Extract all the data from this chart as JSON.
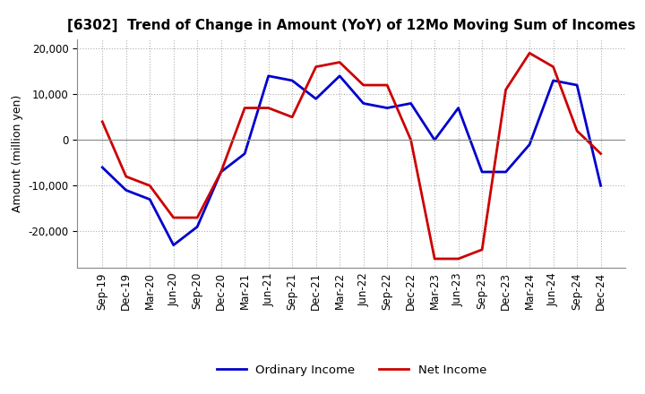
{
  "title": "[6302]  Trend of Change in Amount (YoY) of 12Mo Moving Sum of Incomes",
  "ylabel": "Amount (million yen)",
  "ylim": [
    -28000,
    22000
  ],
  "yticks": [
    -20000,
    -10000,
    0,
    10000,
    20000
  ],
  "legend_labels": [
    "Ordinary Income",
    "Net Income"
  ],
  "line_colors": [
    "#0000cc",
    "#cc0000"
  ],
  "x_labels": [
    "Sep-19",
    "Dec-19",
    "Mar-20",
    "Jun-20",
    "Sep-20",
    "Dec-20",
    "Mar-21",
    "Jun-21",
    "Sep-21",
    "Dec-21",
    "Mar-22",
    "Jun-22",
    "Sep-22",
    "Dec-22",
    "Mar-23",
    "Jun-23",
    "Sep-23",
    "Dec-23",
    "Mar-24",
    "Jun-24",
    "Sep-24",
    "Dec-24"
  ],
  "ordinary_income": [
    -6000,
    -11000,
    -13000,
    -23000,
    -19000,
    -7000,
    -3000,
    14000,
    13000,
    9000,
    14000,
    8000,
    7000,
    8000,
    0,
    7000,
    -7000,
    -7000,
    -1000,
    13000,
    12000,
    -10000
  ],
  "net_income": [
    4000,
    -8000,
    -10000,
    -17000,
    -17000,
    -7000,
    7000,
    7000,
    5000,
    16000,
    17000,
    12000,
    12000,
    0,
    -26000,
    -26000,
    -24000,
    11000,
    19000,
    16000,
    2000,
    -3000
  ],
  "background_color": "#ffffff",
  "grid_color": "#b0b0b0"
}
